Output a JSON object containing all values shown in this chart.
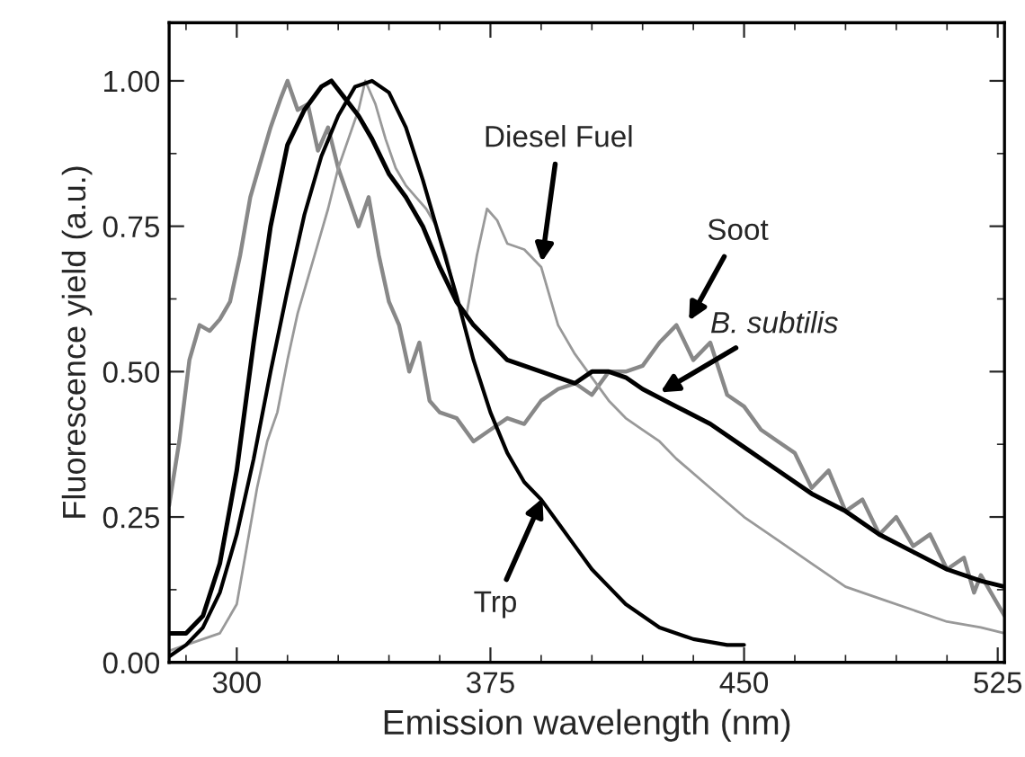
{
  "chart_data": {
    "type": "line",
    "xlabel": "Emission wavelength (nm)",
    "ylabel": "Fluorescence yield (a.u.)",
    "xlim": [
      280,
      527
    ],
    "ylim": [
      0,
      1.1
    ],
    "xticks": [
      300,
      375,
      450,
      525
    ],
    "yticks": [
      {
        "value": 0,
        "label": "0.00"
      },
      {
        "value": 0.25,
        "label": "0.25"
      },
      {
        "value": 0.5,
        "label": "0.50"
      },
      {
        "value": 0.75,
        "label": "0.75"
      },
      {
        "value": 1.0,
        "label": "1.00"
      }
    ],
    "grid": false,
    "legend": false,
    "line_style": "solid",
    "marker": "none",
    "series": [
      {
        "color": "#888888",
        "x": [
          280,
          283,
          286,
          289,
          292,
          295,
          298,
          301,
          304,
          307,
          310,
          313,
          315,
          318,
          321,
          324,
          327,
          330,
          333,
          336,
          339,
          342,
          345,
          348,
          351,
          354,
          357,
          360,
          365,
          370,
          375,
          380,
          385,
          390,
          395,
          400,
          405,
          410,
          415,
          420,
          425,
          430,
          435,
          440,
          445,
          450,
          455,
          460,
          465,
          470,
          475,
          480,
          485,
          490,
          495,
          500,
          505,
          510,
          515,
          518,
          520,
          525,
          527
        ],
        "values": [
          0.27,
          0.38,
          0.52,
          0.58,
          0.57,
          0.59,
          0.62,
          0.7,
          0.8,
          0.86,
          0.92,
          0.97,
          1.0,
          0.95,
          0.96,
          0.88,
          0.92,
          0.85,
          0.8,
          0.75,
          0.8,
          0.7,
          0.62,
          0.58,
          0.5,
          0.55,
          0.45,
          0.43,
          0.42,
          0.38,
          0.4,
          0.42,
          0.41,
          0.45,
          0.47,
          0.48,
          0.46,
          0.5,
          0.5,
          0.51,
          0.55,
          0.58,
          0.52,
          0.55,
          0.46,
          0.44,
          0.4,
          0.38,
          0.36,
          0.3,
          0.33,
          0.26,
          0.28,
          0.22,
          0.25,
          0.2,
          0.22,
          0.16,
          0.18,
          0.12,
          0.15,
          0.1,
          0.08
        ]
      },
      {
        "color": "#999999",
        "x": [
          280,
          285,
          290,
          295,
          300,
          303,
          306,
          309,
          312,
          315,
          318,
          321,
          324,
          327,
          330,
          333,
          336,
          338,
          341,
          344,
          347,
          350,
          353,
          356,
          359,
          362,
          365,
          368,
          371,
          374,
          377,
          380,
          385,
          390,
          395,
          400,
          405,
          410,
          415,
          420,
          425,
          430,
          440,
          450,
          460,
          470,
          480,
          490,
          500,
          510,
          520,
          527
        ],
        "values": [
          0.02,
          0.03,
          0.04,
          0.05,
          0.1,
          0.2,
          0.3,
          0.38,
          0.43,
          0.52,
          0.6,
          0.66,
          0.72,
          0.78,
          0.85,
          0.9,
          0.95,
          1.0,
          0.96,
          0.9,
          0.85,
          0.82,
          0.8,
          0.78,
          0.75,
          0.7,
          0.62,
          0.6,
          0.7,
          0.78,
          0.76,
          0.72,
          0.71,
          0.68,
          0.58,
          0.53,
          0.49,
          0.45,
          0.42,
          0.4,
          0.38,
          0.35,
          0.3,
          0.25,
          0.21,
          0.17,
          0.13,
          0.11,
          0.09,
          0.07,
          0.06,
          0.05
        ]
      },
      {
        "color": "#000000",
        "x": [
          280,
          285,
          290,
          295,
          300,
          305,
          310,
          315,
          320,
          325,
          328,
          332,
          336,
          340,
          345,
          350,
          355,
          360,
          365,
          370,
          375,
          380,
          385,
          390,
          395,
          400,
          405,
          410,
          415,
          420,
          430,
          440,
          450,
          460,
          470,
          480,
          490,
          500,
          510,
          520,
          527
        ],
        "values": [
          0.05,
          0.05,
          0.08,
          0.17,
          0.33,
          0.55,
          0.75,
          0.89,
          0.95,
          0.99,
          1.0,
          0.97,
          0.94,
          0.9,
          0.84,
          0.8,
          0.75,
          0.68,
          0.62,
          0.58,
          0.55,
          0.52,
          0.51,
          0.5,
          0.49,
          0.48,
          0.5,
          0.5,
          0.49,
          0.47,
          0.44,
          0.41,
          0.37,
          0.33,
          0.29,
          0.26,
          0.22,
          0.19,
          0.16,
          0.14,
          0.13
        ]
      },
      {
        "color": "#000000",
        "x": [
          280,
          285,
          290,
          295,
          300,
          305,
          310,
          315,
          320,
          325,
          330,
          335,
          340,
          345,
          350,
          355,
          360,
          365,
          370,
          375,
          380,
          385,
          390,
          395,
          400,
          405,
          410,
          415,
          420,
          425,
          430,
          435,
          440,
          445,
          450
        ],
        "values": [
          0.01,
          0.03,
          0.06,
          0.12,
          0.22,
          0.35,
          0.5,
          0.64,
          0.77,
          0.87,
          0.94,
          0.99,
          1.0,
          0.98,
          0.92,
          0.83,
          0.73,
          0.63,
          0.52,
          0.43,
          0.36,
          0.31,
          0.28,
          0.24,
          0.2,
          0.16,
          0.13,
          0.1,
          0.08,
          0.06,
          0.05,
          0.04,
          0.035,
          0.03,
          0.03
        ]
      }
    ],
    "annotations": [
      {
        "text": "Diesel Fuel",
        "x": 390,
        "y": 0.68
      },
      {
        "text": "Soot",
        "x": 433,
        "y": 0.58
      },
      {
        "text": "B. subtilis",
        "x": 424,
        "y": 0.46
      },
      {
        "text": "Trp",
        "x": 391,
        "y": 0.29
      }
    ]
  }
}
